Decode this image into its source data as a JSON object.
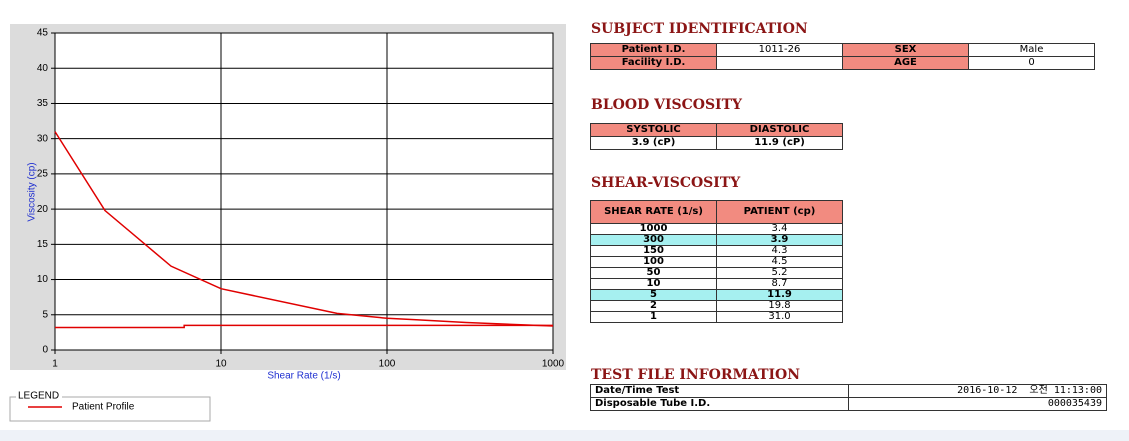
{
  "chart_data": {
    "type": "line",
    "xlabel": "Shear Rate (1/s)",
    "ylabel": "Viscosity (cp)",
    "xscale": "log",
    "xlim": [
      1,
      1000
    ],
    "xticks": [
      1,
      10,
      100,
      1000
    ],
    "ylim": [
      0,
      45
    ],
    "yticks": [
      0,
      5,
      10,
      15,
      20,
      25,
      30,
      35,
      40,
      45
    ],
    "grid": true,
    "legend_title": "LEGEND",
    "series": [
      {
        "name": "Patient Profile",
        "color": "#e00000",
        "x": [
          1,
          2,
          5,
          10,
          50,
          100,
          150,
          300,
          1000
        ],
        "values": [
          31.0,
          19.8,
          11.9,
          8.7,
          5.2,
          4.5,
          4.3,
          3.9,
          3.4
        ]
      },
      {
        "color": "#e00000",
        "x": [
          1,
          6,
          6,
          1000
        ],
        "values": [
          3.2,
          3.2,
          3.5,
          3.5
        ]
      }
    ]
  },
  "subject": {
    "title": "SUBJECT IDENTIFICATION",
    "label_columns": [
      0,
      2
    ],
    "label_color": "#f28b80",
    "rows": [
      [
        "Patient I.D.",
        "1011-26",
        "SEX",
        "Male"
      ],
      [
        "Facility I.D.",
        null,
        "AGE",
        "0"
      ]
    ]
  },
  "blood": {
    "title": "BLOOD VISCOSITY",
    "header_color": "#f28b80",
    "header": [
      "SYSTOLIC",
      "DIASTOLIC"
    ],
    "rows": [
      [
        "3.9 (cP)",
        "11.9 (cP)"
      ]
    ]
  },
  "shear": {
    "title": "SHEAR-VISCOSITY",
    "header_color": "#f28b80",
    "header": [
      "SHEAR RATE (1/s)",
      "PATIENT (cp)"
    ],
    "highlighted_rows": [
      1,
      6
    ],
    "highlight_color": "#a6f0f0",
    "rows": [
      [
        "1000",
        "3.4"
      ],
      [
        "300",
        "3.9"
      ],
      [
        "150",
        "4.3"
      ],
      [
        "100",
        "4.5"
      ],
      [
        "50",
        "5.2"
      ],
      [
        "10",
        "8.7"
      ],
      [
        "5",
        "11.9"
      ],
      [
        "2",
        "19.8"
      ],
      [
        "1",
        "31.0"
      ]
    ]
  },
  "test_file": {
    "title": "TEST FILE INFORMATION",
    "rows": [
      [
        "Date/Time Test",
        "2016-10-12  오전 11:13:00"
      ],
      [
        "Disposable Tube I.D.",
        "000035439"
      ]
    ]
  }
}
